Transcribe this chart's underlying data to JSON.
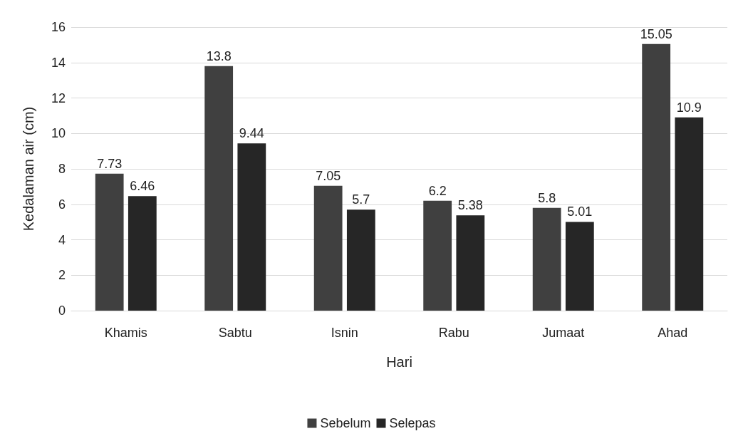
{
  "chart_data": {
    "type": "bar",
    "xlabel": "Hari",
    "ylabel": "Kedalaman air (cm)",
    "categories": [
      "Khamis",
      "Sabtu",
      "Isnin",
      "Rabu",
      "Jumaat",
      "Ahad"
    ],
    "series": [
      {
        "name": "Sebelum",
        "color": "#404040",
        "values": [
          7.73,
          13.8,
          7.05,
          6.2,
          5.8,
          15.05
        ]
      },
      {
        "name": "Selepas",
        "color": "#262626",
        "values": [
          6.46,
          9.44,
          5.7,
          5.38,
          5.01,
          10.9
        ]
      }
    ],
    "ylim": [
      0,
      16
    ],
    "yticks": [
      0,
      2,
      4,
      6,
      8,
      10,
      12,
      14,
      16
    ],
    "grid": "y",
    "legend": "bottom",
    "data_labels": true
  }
}
